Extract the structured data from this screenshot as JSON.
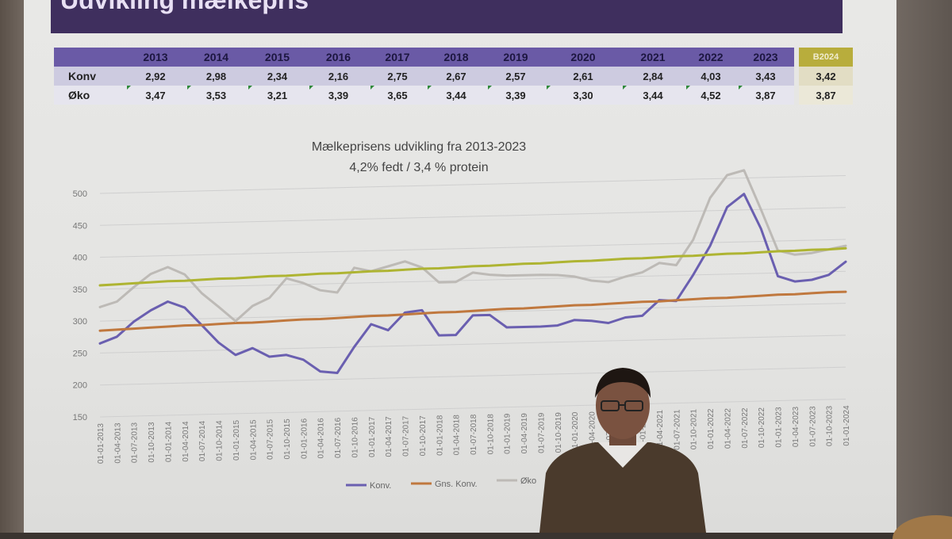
{
  "slide": {
    "title": "Udvikling mælkepris"
  },
  "table": {
    "years": [
      "2013",
      "2014",
      "2015",
      "2016",
      "2017",
      "2018",
      "2019",
      "2020",
      "2021",
      "2022",
      "2023"
    ],
    "budget_header": "B2024",
    "rows": [
      {
        "label": "Konv",
        "values": [
          "2,92",
          "2,98",
          "2,34",
          "2,16",
          "2,75",
          "2,67",
          "2,57",
          "2,61",
          "2,84",
          "4,03",
          "3,43"
        ],
        "budget": "3,42"
      },
      {
        "label": "Øko",
        "values": [
          "3,47",
          "3,53",
          "3,21",
          "3,39",
          "3,65",
          "3,44",
          "3,39",
          "3,30",
          "3,44",
          "4,52",
          "3,87"
        ],
        "budget": "3,87"
      }
    ]
  },
  "chart_data": {
    "type": "line",
    "title": "Mælkeprisens udvikling fra 2013-2023",
    "subtitle": "4,2% fedt / 3,4 % protein",
    "ylim": [
      150,
      500
    ],
    "yticks": [
      150,
      200,
      250,
      300,
      350,
      400,
      450,
      500
    ],
    "grid": true,
    "legend_position": "bottom",
    "x": [
      "01-01-2013",
      "01-04-2013",
      "01-07-2013",
      "01-10-2013",
      "01-01-2014",
      "01-04-2014",
      "01-07-2014",
      "01-10-2014",
      "01-01-2015",
      "01-04-2015",
      "01-07-2015",
      "01-10-2015",
      "01-01-2016",
      "01-04-2016",
      "01-07-2016",
      "01-10-2016",
      "01-01-2017",
      "01-04-2017",
      "01-07-2017",
      "01-10-2017",
      "01-01-2018",
      "01-04-2018",
      "01-07-2018",
      "01-10-2018",
      "01-01-2019",
      "01-04-2019",
      "01-07-2019",
      "01-10-2019",
      "01-01-2020",
      "01-04-2020",
      "01-07-2020",
      "01-10-2020",
      "01-01-2021",
      "01-04-2021",
      "01-07-2021",
      "01-10-2021",
      "01-01-2022",
      "01-04-2022",
      "01-07-2022",
      "01-10-2022",
      "01-01-2023",
      "01-04-2023",
      "01-07-2023",
      "01-10-2023",
      "01-01-2024"
    ],
    "series": [
      {
        "name": "Konv.",
        "color": "#6a5fb0",
        "values": [
          265,
          275,
          298,
          315,
          328,
          318,
          290,
          262,
          242,
          252,
          238,
          240,
          232,
          213,
          210,
          250,
          285,
          275,
          302,
          305,
          265,
          265,
          295,
          295,
          275,
          275,
          275,
          276,
          284,
          282,
          278,
          286,
          288,
          312,
          310,
          350,
          395,
          455,
          475,
          420,
          345,
          336,
          338,
          345,
          365
        ]
      },
      {
        "name": "Gns. Konv.",
        "color": "#c0783e",
        "values": [
          285,
          286,
          287,
          288,
          289,
          290,
          290,
          291,
          292,
          292,
          293,
          294,
          295,
          295,
          296,
          297,
          298,
          298,
          299,
          300,
          301,
          301,
          302,
          303,
          304,
          304,
          305,
          306,
          307,
          307,
          308,
          309,
          310,
          310,
          311,
          312,
          313,
          313,
          314,
          315,
          316,
          316,
          317,
          318,
          318
        ]
      },
      {
        "name": "Øko",
        "color": "#bdbab6",
        "values": [
          322,
          330,
          352,
          372,
          382,
          370,
          340,
          318,
          295,
          318,
          330,
          360,
          352,
          340,
          336,
          374,
          368,
          375,
          382,
          372,
          348,
          348,
          362,
          358,
          356,
          356,
          356,
          355,
          352,
          345,
          342,
          350,
          356,
          370,
          366,
          405,
          470,
          505,
          512,
          450,
          385,
          378,
          380,
          385,
          390
        ]
      },
      {
        "name": "",
        "color": "#aeb432",
        "values": [
          356,
          357,
          358,
          359,
          360,
          360,
          361,
          362,
          362,
          363,
          364,
          364,
          365,
          366,
          366,
          367,
          368,
          368,
          369,
          370,
          370,
          371,
          372,
          372,
          373,
          374,
          374,
          375,
          376,
          376,
          377,
          378,
          378,
          379,
          380,
          380,
          381,
          382,
          382,
          383,
          384,
          384,
          385,
          385,
          386
        ]
      }
    ]
  }
}
